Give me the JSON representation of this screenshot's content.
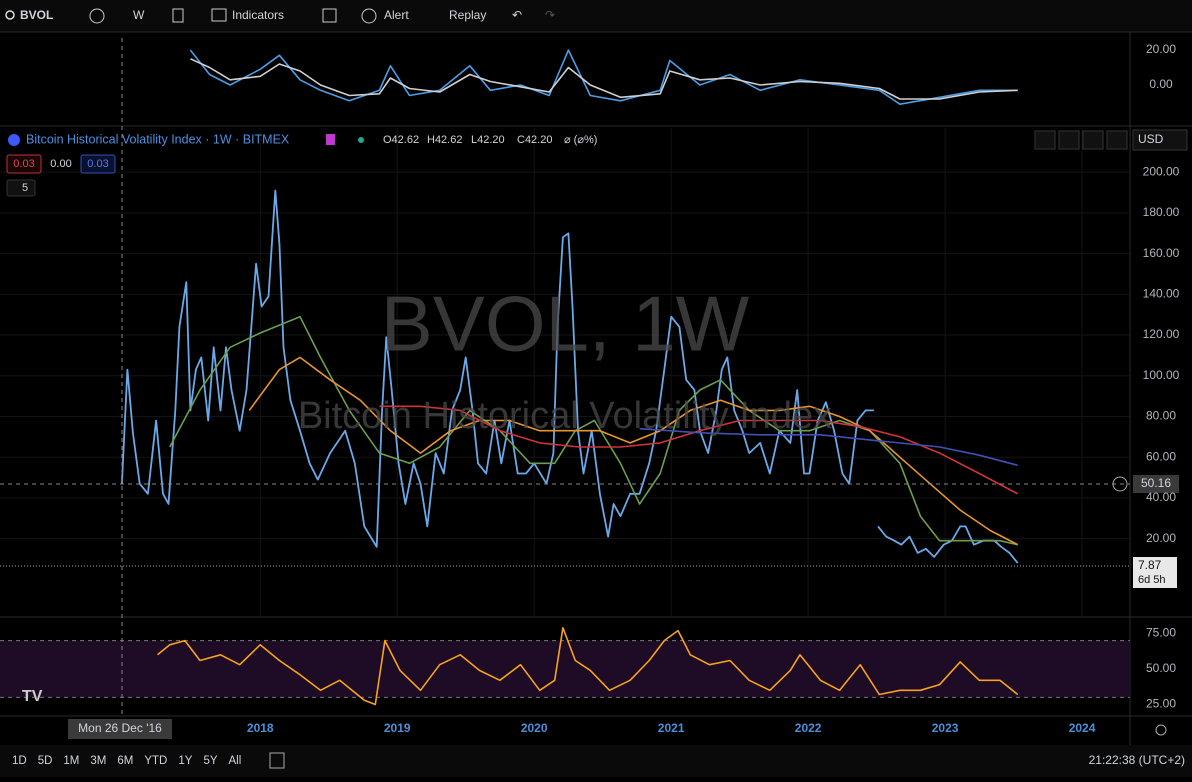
{
  "toolbar": {
    "symbol": "BVOL",
    "interval": "W",
    "indicators": "Indicators",
    "alert": "Alert",
    "replay": "Replay"
  },
  "legend": {
    "open": "O42.62",
    "high": "H42.62",
    "low": "L42.20",
    "close": "C42.20",
    "change": "⌀ (⌀%)",
    "inputs": [
      "0.03",
      "0.00",
      "0.03"
    ],
    "collapse": "5",
    "currency": "USD"
  },
  "watermark": {
    "symbol": "BVOL, 1W",
    "description": "Bitcoin Historical Volatility Index"
  },
  "price_labels": {
    "crosshair": "50.16",
    "last": "7.87",
    "countdown": "6d 5h"
  },
  "time_axis": {
    "crosshair_date": "Mon 26 Dec '16"
  },
  "bottom_bar": {
    "ranges": [
      "1D",
      "5D",
      "1M",
      "3M",
      "6M",
      "YTD",
      "1Y",
      "5Y",
      "All"
    ],
    "clock": "21:22:38 (UTC+2)"
  },
  "chart_data": [
    {
      "type": "line",
      "xlim": [
        2016.1,
        2024.35
      ],
      "ylim": [
        -22.3,
        26.9
      ],
      "yticks": [
        {
          "value": 20,
          "label": "20.00"
        },
        {
          "value": 0,
          "label": "0.00"
        }
      ],
      "grid": false,
      "x": [
        2017.49,
        2017.63,
        2017.78,
        2018.0,
        2018.14,
        2018.29,
        2018.44,
        2018.65,
        2018.87,
        2018.95,
        2019.09,
        2019.31,
        2019.53,
        2019.68,
        2019.9,
        2020.11,
        2020.25,
        2020.41,
        2020.63,
        2020.92,
        2020.99,
        2021.21,
        2021.43,
        2021.65,
        2021.94,
        2022.23,
        2022.52,
        2022.67,
        2022.96,
        2023.25,
        2023.53
      ],
      "series": [
        {
          "color": "#4a9ee8",
          "values": [
            20,
            6,
            0,
            9,
            17,
            3,
            -3,
            -9,
            -3,
            11,
            -6,
            -3,
            11,
            -3,
            0,
            -6,
            20,
            -6,
            -9,
            -3,
            14,
            0,
            6,
            -3,
            3,
            0,
            -3,
            -11,
            -7,
            -3,
            -3
          ]
        },
        {
          "color": "#d0d0d0",
          "values": [
            15,
            10,
            3,
            5,
            12,
            8,
            0,
            -6,
            -5,
            4,
            -2,
            -4,
            6,
            2,
            -1,
            -4,
            10,
            0,
            -7,
            -5,
            8,
            3,
            4,
            0,
            2,
            1,
            -2,
            -8,
            -8,
            -4,
            -3
          ]
        }
      ]
    },
    {
      "type": "line",
      "title": "Bitcoin Historical Volatility Index · 1W · BITMEX",
      "xlim": [
        2016.1,
        2024.35
      ],
      "ylim": [
        -18.5,
        221.7
      ],
      "xticks": [
        2018,
        2019,
        2020,
        2021,
        2022,
        2023,
        2024
      ],
      "yticks": [
        {
          "value": 20,
          "label": "20.00"
        },
        {
          "value": 40,
          "label": "40.00"
        },
        {
          "value": 60,
          "label": "60.00"
        },
        {
          "value": 80,
          "label": "80.00"
        },
        {
          "value": 100,
          "label": "100.00"
        },
        {
          "value": 120,
          "label": "120.00"
        },
        {
          "value": 140,
          "label": "140.00"
        },
        {
          "value": 160,
          "label": "160.00"
        },
        {
          "value": 180,
          "label": "180.00"
        },
        {
          "value": 200,
          "label": "200.00"
        }
      ],
      "grid": true,
      "series": [
        {
          "color": "#6aa9e9",
          "x": [
            2016.99,
            2017.03,
            2017.07,
            2017.12,
            2017.18,
            2017.24,
            2017.29,
            2017.33,
            2017.38,
            2017.41,
            2017.46,
            2017.49,
            2017.53,
            2017.57,
            2017.62,
            2017.66,
            2017.71,
            2017.75,
            2017.79,
            2017.85,
            2017.9,
            2017.97,
            2018.01,
            2018.06,
            2018.11,
            2018.14,
            2018.17,
            2018.22,
            2018.29,
            2018.36,
            2018.42,
            2018.51,
            2018.62,
            2018.69,
            2018.76,
            2018.85,
            2018.89,
            2018.92,
            2018.96,
            2019.01,
            2019.06,
            2019.12,
            2019.17,
            2019.22,
            2019.28,
            2019.34,
            2019.4,
            2019.46,
            2019.5,
            2019.55,
            2019.59,
            2019.65,
            2019.71,
            2019.76,
            2019.82,
            2019.88,
            2019.94,
            2020.0,
            2020.09,
            2020.14,
            2020.17,
            2020.21,
            2020.25,
            2020.28,
            2020.32,
            2020.36,
            2020.42,
            2020.48,
            2020.54,
            2020.58,
            2020.63,
            2020.7,
            2020.77,
            2020.84,
            2020.89,
            2020.95,
            2021.0,
            2021.06,
            2021.11,
            2021.17,
            2021.21,
            2021.27,
            2021.33,
            2021.37,
            2021.41,
            2021.46,
            2021.52,
            2021.57,
            2021.65,
            2021.72,
            2021.79,
            2021.87,
            2021.92,
            2021.97,
            2022.01,
            2022.07,
            2022.13,
            2022.19,
            2022.25,
            2022.3,
            2022.36,
            2022.42,
            2022.48,
            2022.49,
            2022.51,
            2022.57,
            2022.63,
            2022.68,
            2022.74,
            2022.8,
            2022.86,
            2022.92,
            2022.99,
            2023.05,
            2023.11,
            2023.15,
            2023.21,
            2023.28,
            2023.36,
            2023.41,
            2023.47,
            2023.53
          ],
          "values": [
            47,
            103,
            72,
            47,
            42,
            78,
            42,
            37,
            83,
            124,
            146,
            83,
            103,
            109,
            78,
            114,
            83,
            114,
            93,
            73,
            93,
            155,
            134,
            139,
            191,
            165,
            114,
            88,
            73,
            57,
            49,
            62,
            73,
            57,
            26,
            16,
            83,
            119,
            93,
            57,
            37,
            57,
            47,
            26,
            62,
            52,
            83,
            93,
            109,
            83,
            57,
            52,
            78,
            57,
            78,
            52,
            52,
            57,
            47,
            62,
            124,
            168,
            170,
            134,
            73,
            52,
            73,
            42,
            21,
            37,
            31,
            42,
            42,
            57,
            73,
            103,
            129,
            124,
            98,
            93,
            73,
            62,
            83,
            103,
            109,
            83,
            73,
            62,
            67,
            52,
            73,
            67,
            93,
            52,
            52,
            78,
            87,
            73,
            52,
            47,
            78,
            83,
            83,
            null,
            26,
            21,
            19,
            17,
            21,
            13,
            15,
            11,
            17,
            19,
            26,
            26,
            17,
            19,
            19,
            16,
            13,
            8
          ]
        },
        {
          "color": "#6b9e4f",
          "x": [
            2017.34,
            2017.56,
            2017.78,
            2018.0,
            2018.29,
            2018.44,
            2018.65,
            2018.87,
            2019.09,
            2019.31,
            2019.53,
            2019.75,
            2019.97,
            2020.15,
            2020.3,
            2020.44,
            2020.63,
            2020.77,
            2020.92,
            2021.06,
            2021.21,
            2021.36,
            2021.57,
            2021.79,
            2022.01,
            2022.23,
            2022.45,
            2022.67,
            2022.82,
            2022.96,
            2023.18,
            2023.4,
            2023.53
          ],
          "values": [
            65,
            93,
            114,
            121,
            129,
            109,
            83,
            62,
            57,
            65,
            83,
            73,
            57,
            57,
            73,
            78,
            57,
            37,
            52,
            83,
            93,
            98,
            83,
            73,
            73,
            78,
            73,
            57,
            31,
            19,
            19,
            19,
            17
          ]
        },
        {
          "color": "#e8952f",
          "x": [
            2017.92,
            2018.14,
            2018.29,
            2018.51,
            2018.73,
            2018.95,
            2019.17,
            2019.39,
            2019.6,
            2019.82,
            2020.04,
            2020.26,
            2020.48,
            2020.7,
            2020.92,
            2021.14,
            2021.36,
            2021.57,
            2021.79,
            2022.01,
            2022.23,
            2022.45,
            2022.67,
            2022.89,
            2023.11,
            2023.33,
            2023.53
          ],
          "values": [
            83,
            103,
            109,
            98,
            88,
            73,
            62,
            73,
            78,
            78,
            73,
            73,
            73,
            67,
            73,
            83,
            88,
            83,
            83,
            85,
            80,
            73,
            60,
            47,
            34,
            24,
            17
          ]
        },
        {
          "color": "#d0333a",
          "x": [
            2018.87,
            2019.17,
            2019.46,
            2019.75,
            2020.04,
            2020.33,
            2020.63,
            2020.92,
            2021.21,
            2021.5,
            2021.79,
            2022.09,
            2022.38,
            2022.67,
            2022.96,
            2023.25,
            2023.53
          ],
          "values": [
            85,
            85,
            83,
            73,
            67,
            65,
            65,
            67,
            73,
            78,
            78,
            78,
            75,
            70,
            62,
            52,
            42
          ]
        },
        {
          "color": "#3f51b5",
          "x": [
            2020.77,
            2021.21,
            2021.65,
            2022.09,
            2022.52,
            2022.96,
            2023.25,
            2023.53
          ],
          "values": [
            74,
            72,
            71,
            71,
            68,
            65,
            61,
            56
          ]
        }
      ]
    },
    {
      "type": "line",
      "xlim": [
        2016.1,
        2024.35
      ],
      "ylim": [
        17.6,
        85.9
      ],
      "band": [
        30,
        70
      ],
      "grid": false,
      "yticks": [
        {
          "value": 75,
          "label": "75.00"
        },
        {
          "value": 50,
          "label": "50.00"
        },
        {
          "value": 25,
          "label": "25.00"
        }
      ],
      "series": [
        {
          "color": "#f7a21b",
          "x": [
            2017.25,
            2017.34,
            2017.45,
            2017.56,
            2017.71,
            2017.85,
            2018.0,
            2018.14,
            2018.29,
            2018.44,
            2018.58,
            2018.76,
            2018.84,
            2018.91,
            2019.02,
            2019.17,
            2019.31,
            2019.46,
            2019.6,
            2019.75,
            2019.9,
            2020.04,
            2020.15,
            2020.21,
            2020.3,
            2020.41,
            2020.55,
            2020.7,
            2020.84,
            2020.95,
            2021.05,
            2021.14,
            2021.28,
            2021.43,
            2021.57,
            2021.72,
            2021.87,
            2021.94,
            2022.09,
            2022.23,
            2022.38,
            2022.52,
            2022.67,
            2022.82,
            2022.96,
            2023.11,
            2023.25,
            2023.4,
            2023.53
          ],
          "values": [
            60,
            67,
            70,
            56,
            60,
            53,
            67,
            56,
            46,
            35,
            42,
            28,
            25,
            70,
            49,
            35,
            53,
            60,
            49,
            42,
            53,
            35,
            42,
            79,
            56,
            49,
            35,
            42,
            56,
            70,
            77,
            60,
            53,
            56,
            42,
            35,
            49,
            60,
            42,
            35,
            53,
            32,
            35,
            35,
            39,
            55,
            42,
            42,
            32
          ]
        }
      ]
    }
  ]
}
